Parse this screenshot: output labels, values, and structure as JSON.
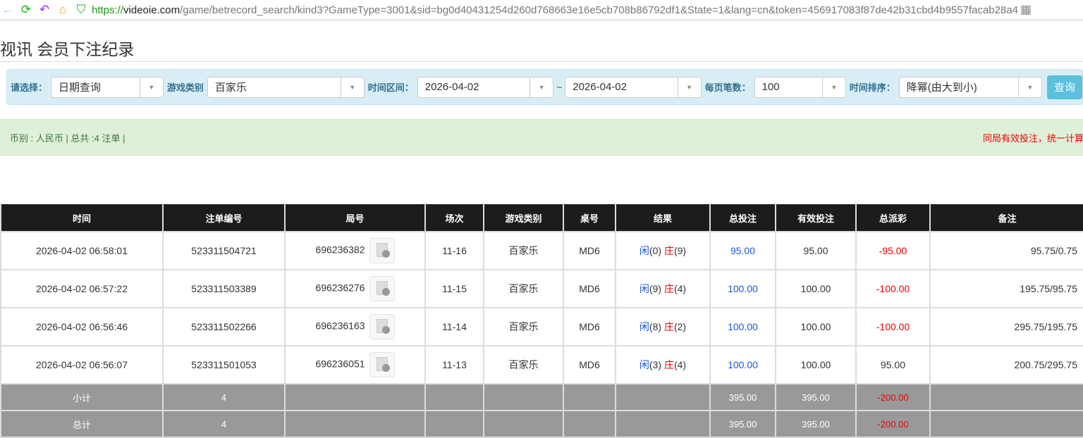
{
  "browser": {
    "url_scheme": "https://",
    "url_domain": "videoie.com",
    "url_path": "/game/betrecord_search/kind3?GameType=3001&sid=bg0d40431254d260d768663e16e5cb708b86792df1&State=1&lang=cn&token=456917083f87de42b31cbd4b9557facab28a4"
  },
  "page_title": "视讯 会员下注纪录",
  "filter": {
    "select_label": "请选择：",
    "select_value": "日期查询",
    "game_label": "游戏类别",
    "game_value": "百家乐",
    "range_label": "时间区间：",
    "date_from": "2026-04-02",
    "tilde": "~",
    "date_to": "2026-04-02",
    "per_page_label": "每页笔数：",
    "per_page_value": "100",
    "sort_label": "时间排序：",
    "sort_value": "降幂(由大到小)",
    "query_button": "查询"
  },
  "info": {
    "summary": "币别 : 人民币 | 总共 :4 注单 |",
    "notice": "同局有效投注，统一计算在该局"
  },
  "table": {
    "headers": [
      "时间",
      "注单编号",
      "局号",
      "场次",
      "游戏类别",
      "桌号",
      "结果",
      "总投注",
      "有效投注",
      "总派彩",
      "备注"
    ],
    "rows": [
      {
        "time": "2026-04-02 06:58:01",
        "bet_id": "523311504721",
        "round": "696236382",
        "session": "11-16",
        "game": "百家乐",
        "table": "MD6",
        "player_label": "闲",
        "player": "(0)",
        "banker_label": "庄",
        "banker": "(9)",
        "total": "95.00",
        "valid": "95.00",
        "payout": "-95.00",
        "payout_neg": true,
        "note": "95.75/0.75"
      },
      {
        "time": "2026-04-02 06:57:22",
        "bet_id": "523311503389",
        "round": "696236276",
        "session": "11-15",
        "game": "百家乐",
        "table": "MD6",
        "player_label": "闲",
        "player": "(9)",
        "banker_label": "庄",
        "banker": "(4)",
        "total": "100.00",
        "valid": "100.00",
        "payout": "-100.00",
        "payout_neg": true,
        "note": "195.75/95.75"
      },
      {
        "time": "2026-04-02 06:56:46",
        "bet_id": "523311502266",
        "round": "696236163",
        "session": "11-14",
        "game": "百家乐",
        "table": "MD6",
        "player_label": "闲",
        "player": "(8)",
        "banker_label": "庄",
        "banker": "(2)",
        "total": "100.00",
        "valid": "100.00",
        "payout": "-100.00",
        "payout_neg": true,
        "note": "295.75/195.75"
      },
      {
        "time": "2026-04-02 06:56:07",
        "bet_id": "523311501053",
        "round": "696236051",
        "session": "11-13",
        "game": "百家乐",
        "table": "MD6",
        "player_label": "闲",
        "player": "(3)",
        "banker_label": "庄",
        "banker": "(4)",
        "total": "100.00",
        "valid": "100.00",
        "payout": "95.00",
        "payout_neg": false,
        "note": "200.75/295.75"
      }
    ],
    "subtotal": {
      "label": "小计",
      "count": "4",
      "total": "395.00",
      "valid": "395.00",
      "payout": "-200.00"
    },
    "grand_total": {
      "label": "总计",
      "count": "4",
      "total": "395.00",
      "valid": "395.00",
      "payout": "-200.00"
    }
  },
  "colors": {
    "header_bg": "#1c1c1c",
    "filter_bg": "#d9edf7",
    "info_bg": "#dff0d8",
    "positive_blue": "#1a55e8",
    "negative_red": "#e00000",
    "summary_bg": "#999999"
  }
}
